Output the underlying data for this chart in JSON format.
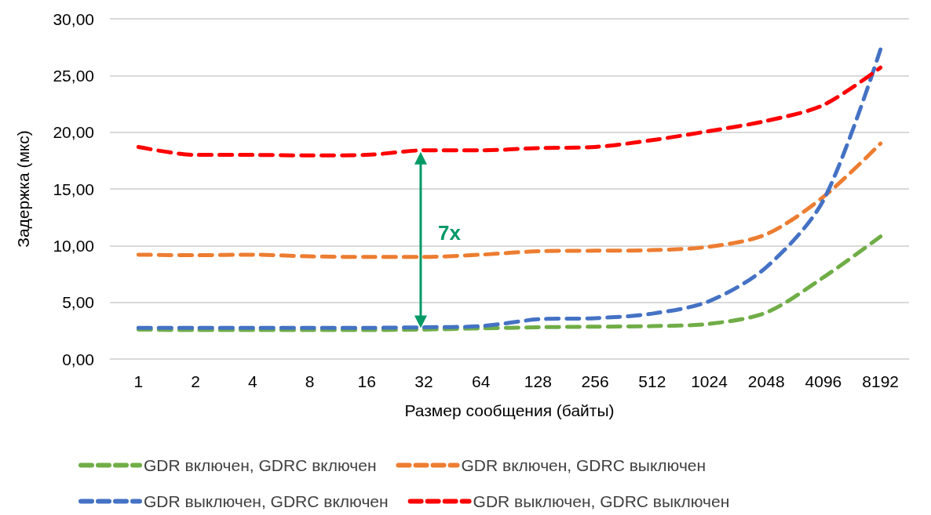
{
  "chart_data": {
    "type": "line",
    "xlabel": "Размер сообщения (байты)",
    "ylabel": "Задержка (мкс)",
    "categories": [
      "1",
      "2",
      "4",
      "8",
      "16",
      "32",
      "64",
      "128",
      "256",
      "512",
      "1024",
      "2048",
      "4096",
      "8192"
    ],
    "series": [
      {
        "name": "GDR включен, GDRC включен",
        "color": "#70ad47",
        "values": [
          2.6,
          2.55,
          2.55,
          2.55,
          2.55,
          2.6,
          2.7,
          2.8,
          2.85,
          2.9,
          3.1,
          4.1,
          7.2,
          10.8
        ]
      },
      {
        "name": "GDR включен, GDRC выключен",
        "color": "#ed7d31",
        "values": [
          9.2,
          9.15,
          9.2,
          9.05,
          9.0,
          9.0,
          9.2,
          9.5,
          9.55,
          9.6,
          9.9,
          11.0,
          14.3,
          19.0
        ]
      },
      {
        "name": "GDR выключен, GDRC включен",
        "color": "#4472c4",
        "values": [
          2.75,
          2.75,
          2.75,
          2.75,
          2.75,
          2.8,
          2.9,
          3.5,
          3.6,
          4.0,
          5.1,
          8.1,
          14.0,
          27.3
        ]
      },
      {
        "name": "GDR выключен, GDRC выключен",
        "color": "#ff0000",
        "values": [
          18.7,
          18.0,
          18.0,
          17.95,
          18.0,
          18.4,
          18.4,
          18.6,
          18.7,
          19.3,
          20.1,
          21.0,
          22.4,
          25.7
        ]
      }
    ],
    "ylim": [
      0,
      30
    ],
    "yticks": [
      {
        "value": 0,
        "label": "0,00"
      },
      {
        "value": 5,
        "label": "5,00"
      },
      {
        "value": 10,
        "label": "10,00"
      },
      {
        "value": 15,
        "label": "15,00"
      },
      {
        "value": 20,
        "label": "20,00"
      },
      {
        "value": 25,
        "label": "25,00"
      },
      {
        "value": 30,
        "label": "30,00"
      }
    ],
    "annotations": [
      "7x"
    ],
    "grid": "y",
    "legend": "bottom",
    "marker": "none",
    "line_style": "dashed"
  }
}
